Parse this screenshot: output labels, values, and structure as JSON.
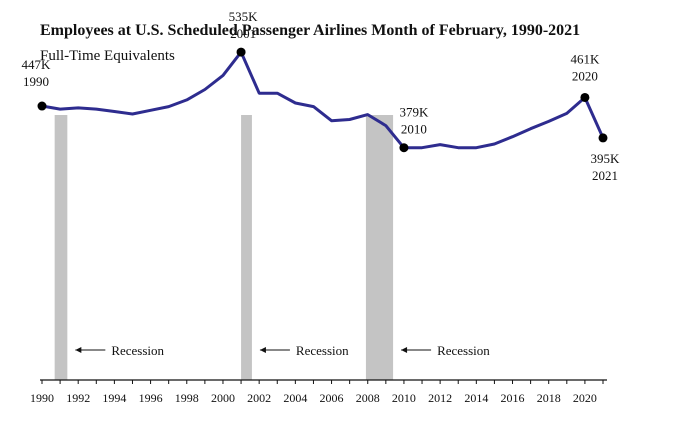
{
  "chart_data": {
    "type": "line",
    "title": "Employees at U.S. Scheduled Passenger Airlines Month of February, 1990-2021",
    "subtitle": "Full-Time Equivalents",
    "xlabel": "",
    "ylabel": "",
    "x": [
      1990,
      1991,
      1992,
      1993,
      1994,
      1995,
      1996,
      1997,
      1998,
      1999,
      2000,
      2001,
      2002,
      2003,
      2004,
      2005,
      2006,
      2007,
      2008,
      2009,
      2010,
      2011,
      2012,
      2013,
      2014,
      2015,
      2016,
      2017,
      2018,
      2019,
      2020,
      2021
    ],
    "series": [
      {
        "values": [
          447,
          442,
          444,
          442,
          438,
          434,
          440,
          446,
          457,
          474,
          497,
          535,
          468,
          468,
          452,
          446,
          423,
          425,
          433,
          415,
          379,
          379,
          384,
          379,
          379,
          385,
          397,
          410,
          422,
          435,
          461,
          395
        ]
      }
    ],
    "ylim": [
      0,
      620
    ],
    "xlim": [
      1990,
      2021
    ],
    "xticks": [
      "1990",
      "1992",
      "1994",
      "1996",
      "1998",
      "2000",
      "2002",
      "2004",
      "2006",
      "2008",
      "2010",
      "2012",
      "2014",
      "2016",
      "2018",
      "2020"
    ],
    "grid": false,
    "line_color": "#2e2c8f",
    "recession_color": "#c4c4c4",
    "recessions": [
      {
        "start": 1990.7,
        "end": 1991.4,
        "label": "Recession"
      },
      {
        "start": 2001.0,
        "end": 2001.6,
        "label": "Recession"
      },
      {
        "start": 2007.9,
        "end": 2009.4,
        "label": "Recession"
      }
    ],
    "annotations": [
      {
        "x": 1990,
        "value_label": "447K",
        "year_label": "1990"
      },
      {
        "x": 2001,
        "value_label": "535K",
        "year_label": "2001"
      },
      {
        "x": 2010,
        "value_label": "379K",
        "year_label": "2010"
      },
      {
        "x": 2020,
        "value_label": "461K",
        "year_label": "2020"
      },
      {
        "x": 2021,
        "value_label": "395K",
        "year_label": "2021"
      }
    ]
  }
}
